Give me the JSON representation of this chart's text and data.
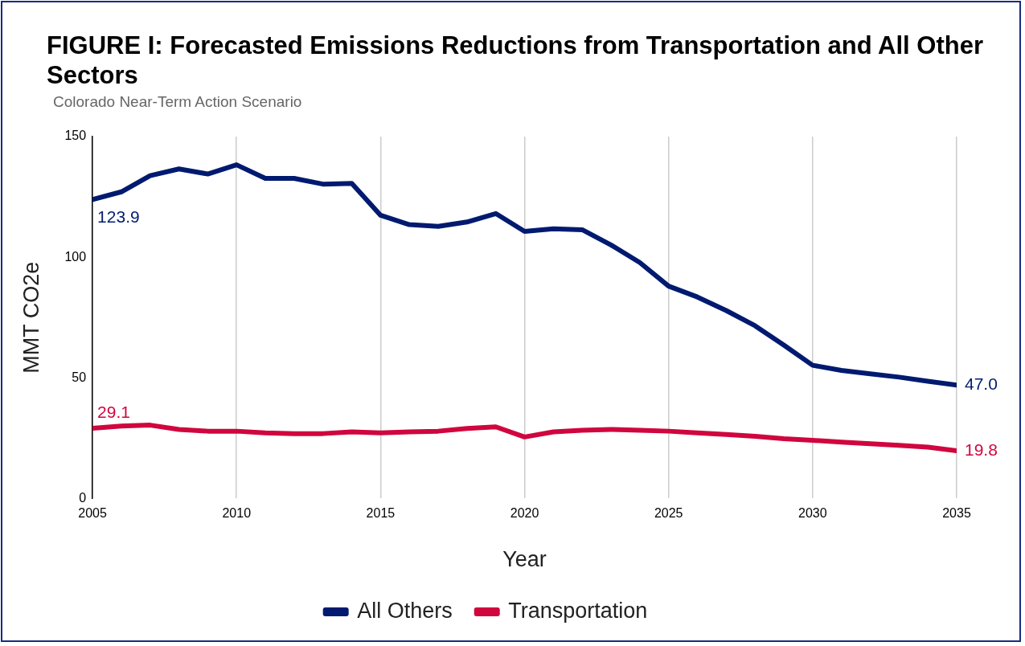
{
  "chart_data": {
    "type": "line",
    "title": "FIGURE I: Forecasted Emissions Reductions from Transportation and All Other Sectors",
    "subtitle": "Colorado Near-Term Action Scenario",
    "xlabel": "Year",
    "ylabel": "MMT CO2e",
    "x": [
      2005,
      2006,
      2007,
      2008,
      2009,
      2010,
      2011,
      2012,
      2013,
      2014,
      2015,
      2016,
      2017,
      2018,
      2019,
      2020,
      2021,
      2022,
      2023,
      2024,
      2025,
      2026,
      2027,
      2028,
      2029,
      2030,
      2031,
      2032,
      2033,
      2034,
      2035
    ],
    "series": [
      {
        "name": "All Others",
        "color": "#001a70",
        "values": [
          123.9,
          127.1,
          133.8,
          136.6,
          134.5,
          138.3,
          132.7,
          132.7,
          130.3,
          130.6,
          117.4,
          113.5,
          112.8,
          114.6,
          118.1,
          110.7,
          111.8,
          111.4,
          105.1,
          97.8,
          88.0,
          83.5,
          77.9,
          71.6,
          63.6,
          55.2,
          53.1,
          51.7,
          50.3,
          48.6,
          47.0
        ],
        "value_labels": [
          "123.9",
          null,
          null,
          null,
          null,
          null,
          null,
          null,
          null,
          null,
          null,
          null,
          null,
          null,
          null,
          null,
          null,
          null,
          null,
          null,
          null,
          null,
          null,
          null,
          null,
          null,
          null,
          null,
          null,
          null,
          "47.0"
        ]
      },
      {
        "name": "Transportation",
        "color": "#d0063e",
        "values": [
          29.1,
          30.0,
          30.4,
          28.6,
          27.9,
          27.9,
          27.2,
          26.9,
          26.9,
          27.6,
          27.2,
          27.6,
          27.9,
          29.0,
          29.7,
          25.5,
          27.6,
          28.3,
          28.6,
          28.3,
          27.9,
          27.2,
          26.5,
          25.8,
          24.8,
          24.1,
          23.4,
          22.7,
          22.0,
          21.3,
          19.8
        ],
        "value_labels": [
          "29.1",
          null,
          null,
          null,
          null,
          null,
          null,
          null,
          null,
          null,
          null,
          null,
          null,
          null,
          null,
          null,
          null,
          null,
          null,
          null,
          null,
          null,
          null,
          null,
          null,
          null,
          null,
          null,
          null,
          null,
          "19.8"
        ]
      }
    ],
    "xlim": [
      2005,
      2035
    ],
    "xticks": [
      2005,
      2010,
      2015,
      2020,
      2025,
      2030,
      2035
    ],
    "ylim": [
      0,
      150
    ],
    "yticks": [
      0,
      50,
      100,
      150
    ],
    "grid": "x",
    "legend": "bottom",
    "marker": "none",
    "line_style": "solid"
  }
}
